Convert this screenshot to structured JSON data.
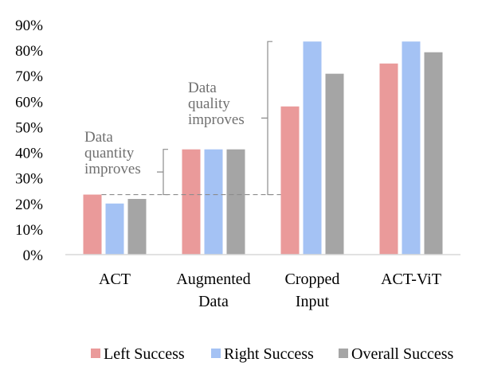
{
  "chart_data": {
    "type": "bar",
    "categories": [
      [
        "ACT"
      ],
      [
        "Augmented",
        "Data"
      ],
      [
        "Cropped",
        "Input"
      ],
      [
        "ACT-ViT"
      ]
    ],
    "series": [
      {
        "name": "Left Success",
        "color": "#ea9a9a",
        "values": [
          23.5,
          41.2,
          58.0,
          74.8
        ]
      },
      {
        "name": "Right Success",
        "color": "#a4c2f4",
        "values": [
          20.0,
          41.2,
          83.4,
          83.4
        ]
      },
      {
        "name": "Overall Success",
        "color": "#a5a5a5",
        "values": [
          21.8,
          41.2,
          70.8,
          79.2
        ]
      }
    ],
    "yticks": [
      "0%",
      "10%",
      "20%",
      "30%",
      "40%",
      "50%",
      "60%",
      "70%",
      "80%",
      "90%"
    ],
    "ylim": [
      0,
      90
    ],
    "grid": false,
    "legend_position": "bottom",
    "annotations": [
      {
        "lines": [
          "Data",
          "quantity",
          "improves"
        ],
        "from": 23.5,
        "to": 41.2
      },
      {
        "lines": [
          "Data",
          "quality",
          "improves"
        ],
        "from": 23.5,
        "to": 83.4
      }
    ],
    "reference_line": 23.5
  }
}
